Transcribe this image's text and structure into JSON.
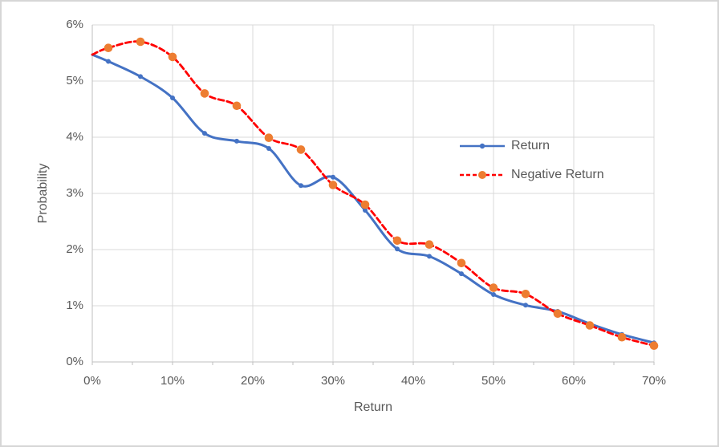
{
  "chart_data": {
    "type": "line",
    "title": "",
    "xlabel": "Return",
    "ylabel": "Probability",
    "xlim": [
      0,
      70
    ],
    "ylim": [
      0,
      6
    ],
    "x_tick_labels": [
      "0%",
      "10%",
      "20%",
      "30%",
      "40%",
      "50%",
      "60%",
      "70%"
    ],
    "x_tick_values": [
      0,
      10,
      20,
      30,
      40,
      50,
      60,
      70
    ],
    "x_minor_tick_step": 5,
    "y_tick_labels": [
      "0%",
      "1%",
      "2%",
      "3%",
      "4%",
      "5%",
      "6%"
    ],
    "y_tick_values": [
      0,
      1,
      2,
      3,
      4,
      5,
      6
    ],
    "grid": "both",
    "legend_position": "inside-right",
    "x": [
      0,
      2,
      6,
      10,
      14,
      18,
      22,
      26,
      30,
      34,
      38,
      42,
      46,
      50,
      54,
      58,
      62,
      66,
      70
    ],
    "series": [
      {
        "name": "Return",
        "values": [
          5.47,
          5.35,
          5.08,
          4.7,
          4.07,
          3.93,
          3.8,
          3.14,
          3.29,
          2.7,
          2.01,
          1.88,
          1.57,
          1.2,
          1.01,
          0.9,
          0.68,
          0.49,
          0.34
        ],
        "line_color": "#4472C4",
        "line_style": "solid",
        "line_width": 3,
        "marker": "circle",
        "marker_color": "#4472C4",
        "marker_radius": 3,
        "smooth": true
      },
      {
        "name": "Negative Return",
        "values": [
          5.47,
          5.59,
          5.7,
          5.43,
          4.78,
          4.56,
          3.99,
          3.78,
          3.15,
          2.8,
          2.16,
          2.09,
          1.76,
          1.32,
          1.21,
          0.86,
          0.65,
          0.44,
          0.29
        ],
        "line_color": "#FF0000",
        "line_style": "dashed",
        "line_width": 2.8,
        "marker": "circle",
        "marker_color": "#ED7D31",
        "marker_radius": 5.3,
        "smooth": true
      }
    ]
  },
  "styles": {
    "gridline_color": "#D9D9D9",
    "axis_line_color": "#BFBFBF",
    "text_color": "#595959",
    "background_color": "#FFFFFF",
    "border_color": "#D6D6D6"
  }
}
